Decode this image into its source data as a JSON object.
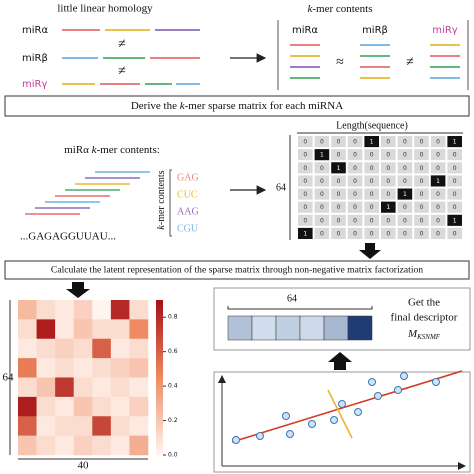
{
  "top": {
    "left_title": "little linear homology",
    "left_labels": [
      "miRα",
      "miRβ",
      "miRγ"
    ],
    "left_relations": [
      "≠",
      "≠"
    ],
    "right_title": [
      "k",
      "-mer contents"
    ],
    "right_labels": [
      "miRα",
      "miRβ",
      "miRγ"
    ],
    "right_relations": [
      "≈",
      "≠"
    ]
  },
  "banner1": [
    "Derive the ",
    "k",
    "-mer sparse matrix for each miRNA"
  ],
  "kmer": {
    "caption": [
      "miRα ",
      "k",
      "-mer contents:"
    ],
    "sequence": "...GAGAGGUUAU...",
    "axis_label": [
      "k",
      "-mer contents"
    ],
    "kmers": [
      "GAG",
      "CUC",
      "AAG",
      "CGU"
    ]
  },
  "matrix": {
    "length_label": "Length(sequence)",
    "rows_label": "64",
    "cells": [
      [
        0,
        0,
        0,
        0,
        1,
        0,
        0,
        0,
        0,
        1
      ],
      [
        0,
        1,
        0,
        0,
        0,
        0,
        0,
        0,
        0,
        0
      ],
      [
        0,
        0,
        1,
        0,
        0,
        0,
        0,
        0,
        0,
        0
      ],
      [
        0,
        0,
        0,
        0,
        0,
        0,
        0,
        0,
        1,
        0
      ],
      [
        0,
        0,
        0,
        0,
        0,
        0,
        1,
        0,
        0,
        0
      ],
      [
        0,
        0,
        0,
        0,
        0,
        1,
        0,
        0,
        0,
        0
      ],
      [
        0,
        0,
        0,
        0,
        0,
        0,
        0,
        0,
        0,
        1
      ],
      [
        1,
        0,
        0,
        0,
        0,
        0,
        0,
        0,
        0,
        0
      ]
    ]
  },
  "banner2": "Calculate the latent representation of the sparse matrix through non-negative matrix factorization",
  "heatmap": {
    "rows_label": "64",
    "cols_label": "40",
    "values": [
      [
        0.25,
        0.1,
        0.05,
        0.15,
        0.0,
        0.8,
        0.1
      ],
      [
        0.1,
        0.85,
        0.05,
        0.2,
        0.1,
        0.1,
        0.45
      ],
      [
        0.05,
        0.1,
        0.15,
        0.1,
        0.6,
        0.05,
        0.1
      ],
      [
        0.5,
        0.05,
        0.1,
        0.05,
        0.1,
        0.15,
        0.2
      ],
      [
        0.1,
        0.2,
        0.75,
        0.1,
        0.05,
        0.1,
        0.05
      ],
      [
        0.85,
        0.1,
        0.05,
        0.2,
        0.1,
        0.05,
        0.15
      ],
      [
        0.6,
        0.05,
        0.1,
        0.1,
        0.7,
        0.1,
        0.05
      ],
      [
        0.2,
        0.1,
        0.05,
        0.15,
        0.1,
        0.05,
        0.3
      ]
    ],
    "clim": [
      0,
      0.9
    ],
    "ticks": [
      {
        "value": 0,
        "label": "0.0"
      },
      0.2,
      0.4,
      0.6,
      0.8
    ]
  },
  "descriptor": {
    "size_label": "64",
    "values": [
      0.25,
      0.1,
      0.18,
      0.12,
      0.3,
      0.95
    ],
    "caption": [
      "Get the",
      "final descriptor",
      "M",
      "KSNMF"
    ]
  }
}
